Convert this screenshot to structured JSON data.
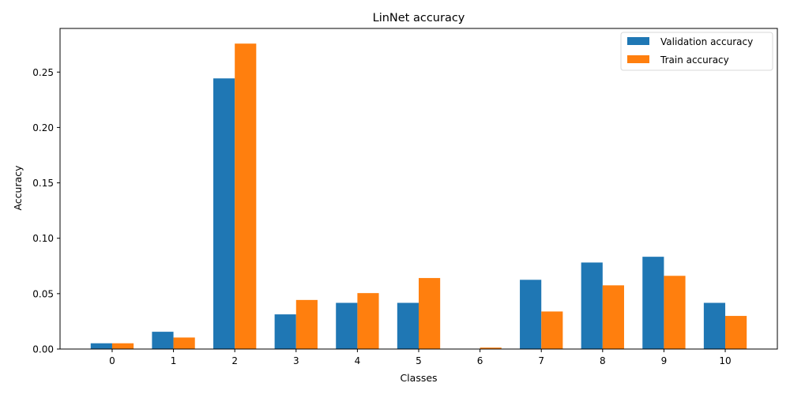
{
  "chart_data": {
    "type": "bar",
    "title": "LinNet accuracy",
    "xlabel": "Classes",
    "ylabel": "Accuracy",
    "categories": [
      "0",
      "1",
      "2",
      "3",
      "4",
      "5",
      "6",
      "7",
      "8",
      "9",
      "10"
    ],
    "series": [
      {
        "name": "Validation accuracy",
        "color": "#1f77b4",
        "values": [
          0.0052,
          0.0156,
          0.2443,
          0.0313,
          0.0417,
          0.0417,
          0.0,
          0.0625,
          0.0781,
          0.0833,
          0.0417
        ]
      },
      {
        "name": "Train accuracy",
        "color": "#ff7f0e",
        "values": [
          0.0052,
          0.0104,
          0.2757,
          0.0443,
          0.0505,
          0.0641,
          0.0013,
          0.0339,
          0.0575,
          0.0661,
          0.0299
        ]
      }
    ],
    "yticks": [
      0.0,
      0.05,
      0.1,
      0.15,
      0.2,
      0.25
    ],
    "ytick_labels": [
      "0.00",
      "0.05",
      "0.10",
      "0.15",
      "0.20",
      "0.25"
    ],
    "ylim": [
      0,
      0.2894
    ],
    "grid": false,
    "legend_position": "top-right"
  }
}
